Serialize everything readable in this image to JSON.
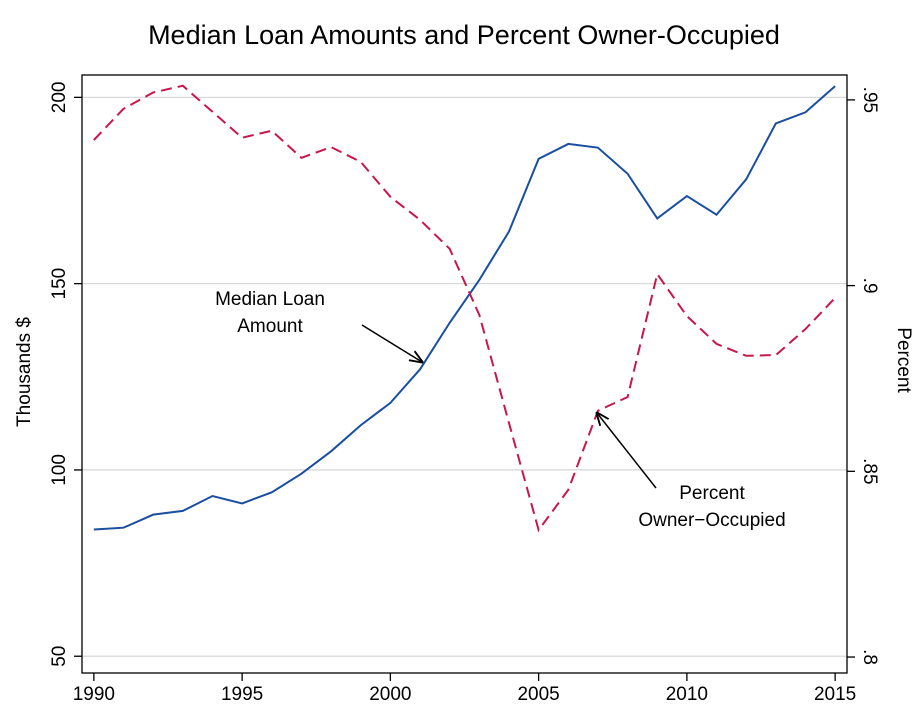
{
  "chart_data": {
    "type": "line",
    "title": "Median Loan Amounts and Percent Owner-Occupied",
    "y_label": "Thousands $",
    "y2_label": "Percent",
    "x": [
      1990,
      1991,
      1992,
      1993,
      1994,
      1995,
      1996,
      1997,
      1998,
      1999,
      2000,
      2001,
      2002,
      2003,
      2004,
      2005,
      2006,
      2007,
      2008,
      2009,
      2010,
      2011,
      2012,
      2013,
      2014,
      2015
    ],
    "xlim": [
      1989.6,
      2015.4
    ],
    "xticks": [
      1990,
      1995,
      2000,
      2005,
      2010,
      2015
    ],
    "ylim": [
      45.5,
      206
    ],
    "yticks": [
      50,
      100,
      150,
      200
    ],
    "y2lim": [
      0.7957,
      0.9567
    ],
    "y2ticks": [
      {
        "value": 0.8,
        "label": ".8"
      },
      {
        "value": 0.85,
        "label": ".85"
      },
      {
        "value": 0.9,
        "label": ".9"
      },
      {
        "value": 0.95,
        "label": ".95"
      }
    ],
    "grid": true,
    "series": [
      {
        "color": "#1a4ea0",
        "dash": "solid",
        "axis": "y",
        "values": [
          84,
          84.5,
          88,
          89,
          93,
          91,
          94,
          99,
          105,
          112,
          118,
          127,
          139.5,
          151,
          164,
          183.5,
          187.5,
          186.5,
          179.5,
          167.5,
          173.5,
          168.5,
          178,
          193,
          196,
          203
        ]
      },
      {
        "color": "#c8174a",
        "dash": "dashed",
        "axis": "y2",
        "values": [
          0.9392,
          0.9476,
          0.952,
          0.9538,
          0.9468,
          0.9398,
          0.9417,
          0.9344,
          0.9373,
          0.9333,
          0.9239,
          0.9177,
          0.9099,
          0.8921,
          0.863,
          0.8342,
          0.845,
          0.8663,
          0.87,
          0.9031,
          0.8918,
          0.8843,
          0.8811,
          0.8813,
          0.8883,
          0.8967
        ]
      }
    ],
    "annotations": [
      {
        "lines": [
          "Median Loan",
          "Amount"
        ]
      },
      {
        "lines": [
          "Percent",
          "Owner−Occupied"
        ]
      }
    ]
  }
}
